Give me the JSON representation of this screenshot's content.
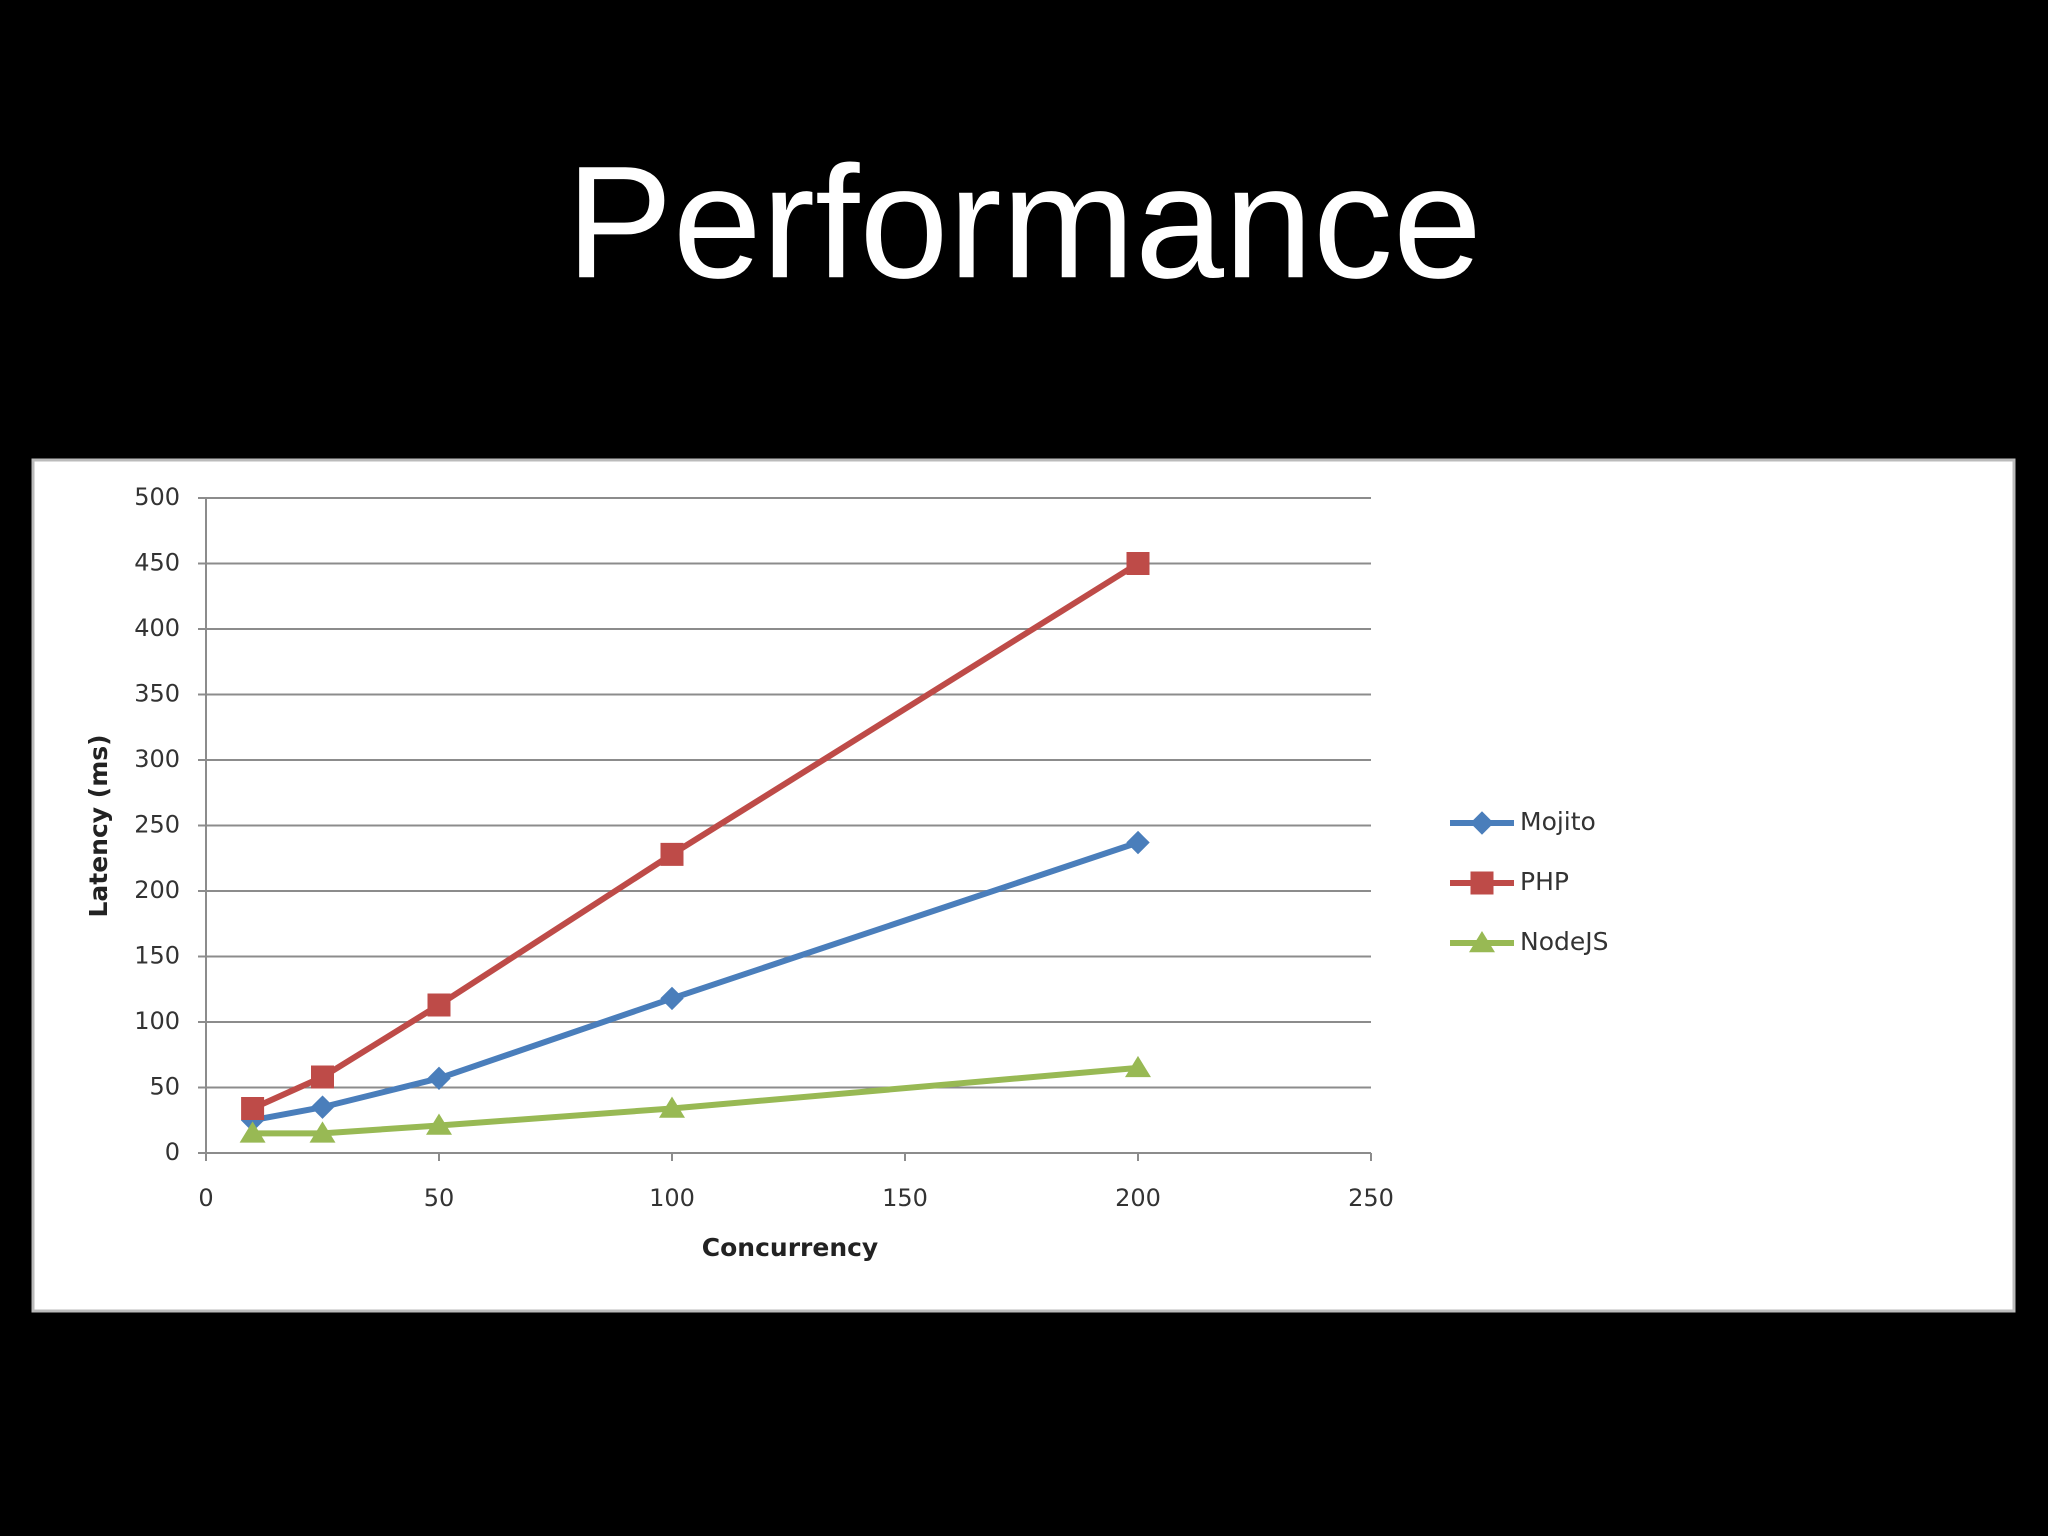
{
  "chart_data": {
    "type": "line",
    "title": "Performance",
    "xlabel": "Concurrency",
    "ylabel": "Latency (ms)",
    "x": [
      10,
      25,
      50,
      100,
      200
    ],
    "series": [
      {
        "name": "Mojito",
        "color": "#4a7ebb",
        "marker": "diamond",
        "values": [
          25,
          35,
          57,
          118,
          237
        ]
      },
      {
        "name": "PHP",
        "color": "#be4b48",
        "marker": "square",
        "values": [
          34,
          58,
          113,
          228,
          450
        ]
      },
      {
        "name": "NodeJS",
        "color": "#98b954",
        "marker": "triangle",
        "values": [
          15,
          15,
          21,
          34,
          65
        ]
      }
    ],
    "xlim": [
      0,
      250
    ],
    "xticks": [
      0,
      50,
      100,
      150,
      200,
      250
    ],
    "ylim": [
      0,
      500
    ],
    "yticks": [
      0,
      50,
      100,
      150,
      200,
      250,
      300,
      350,
      400,
      450,
      500
    ],
    "grid": true,
    "legend": "right"
  }
}
